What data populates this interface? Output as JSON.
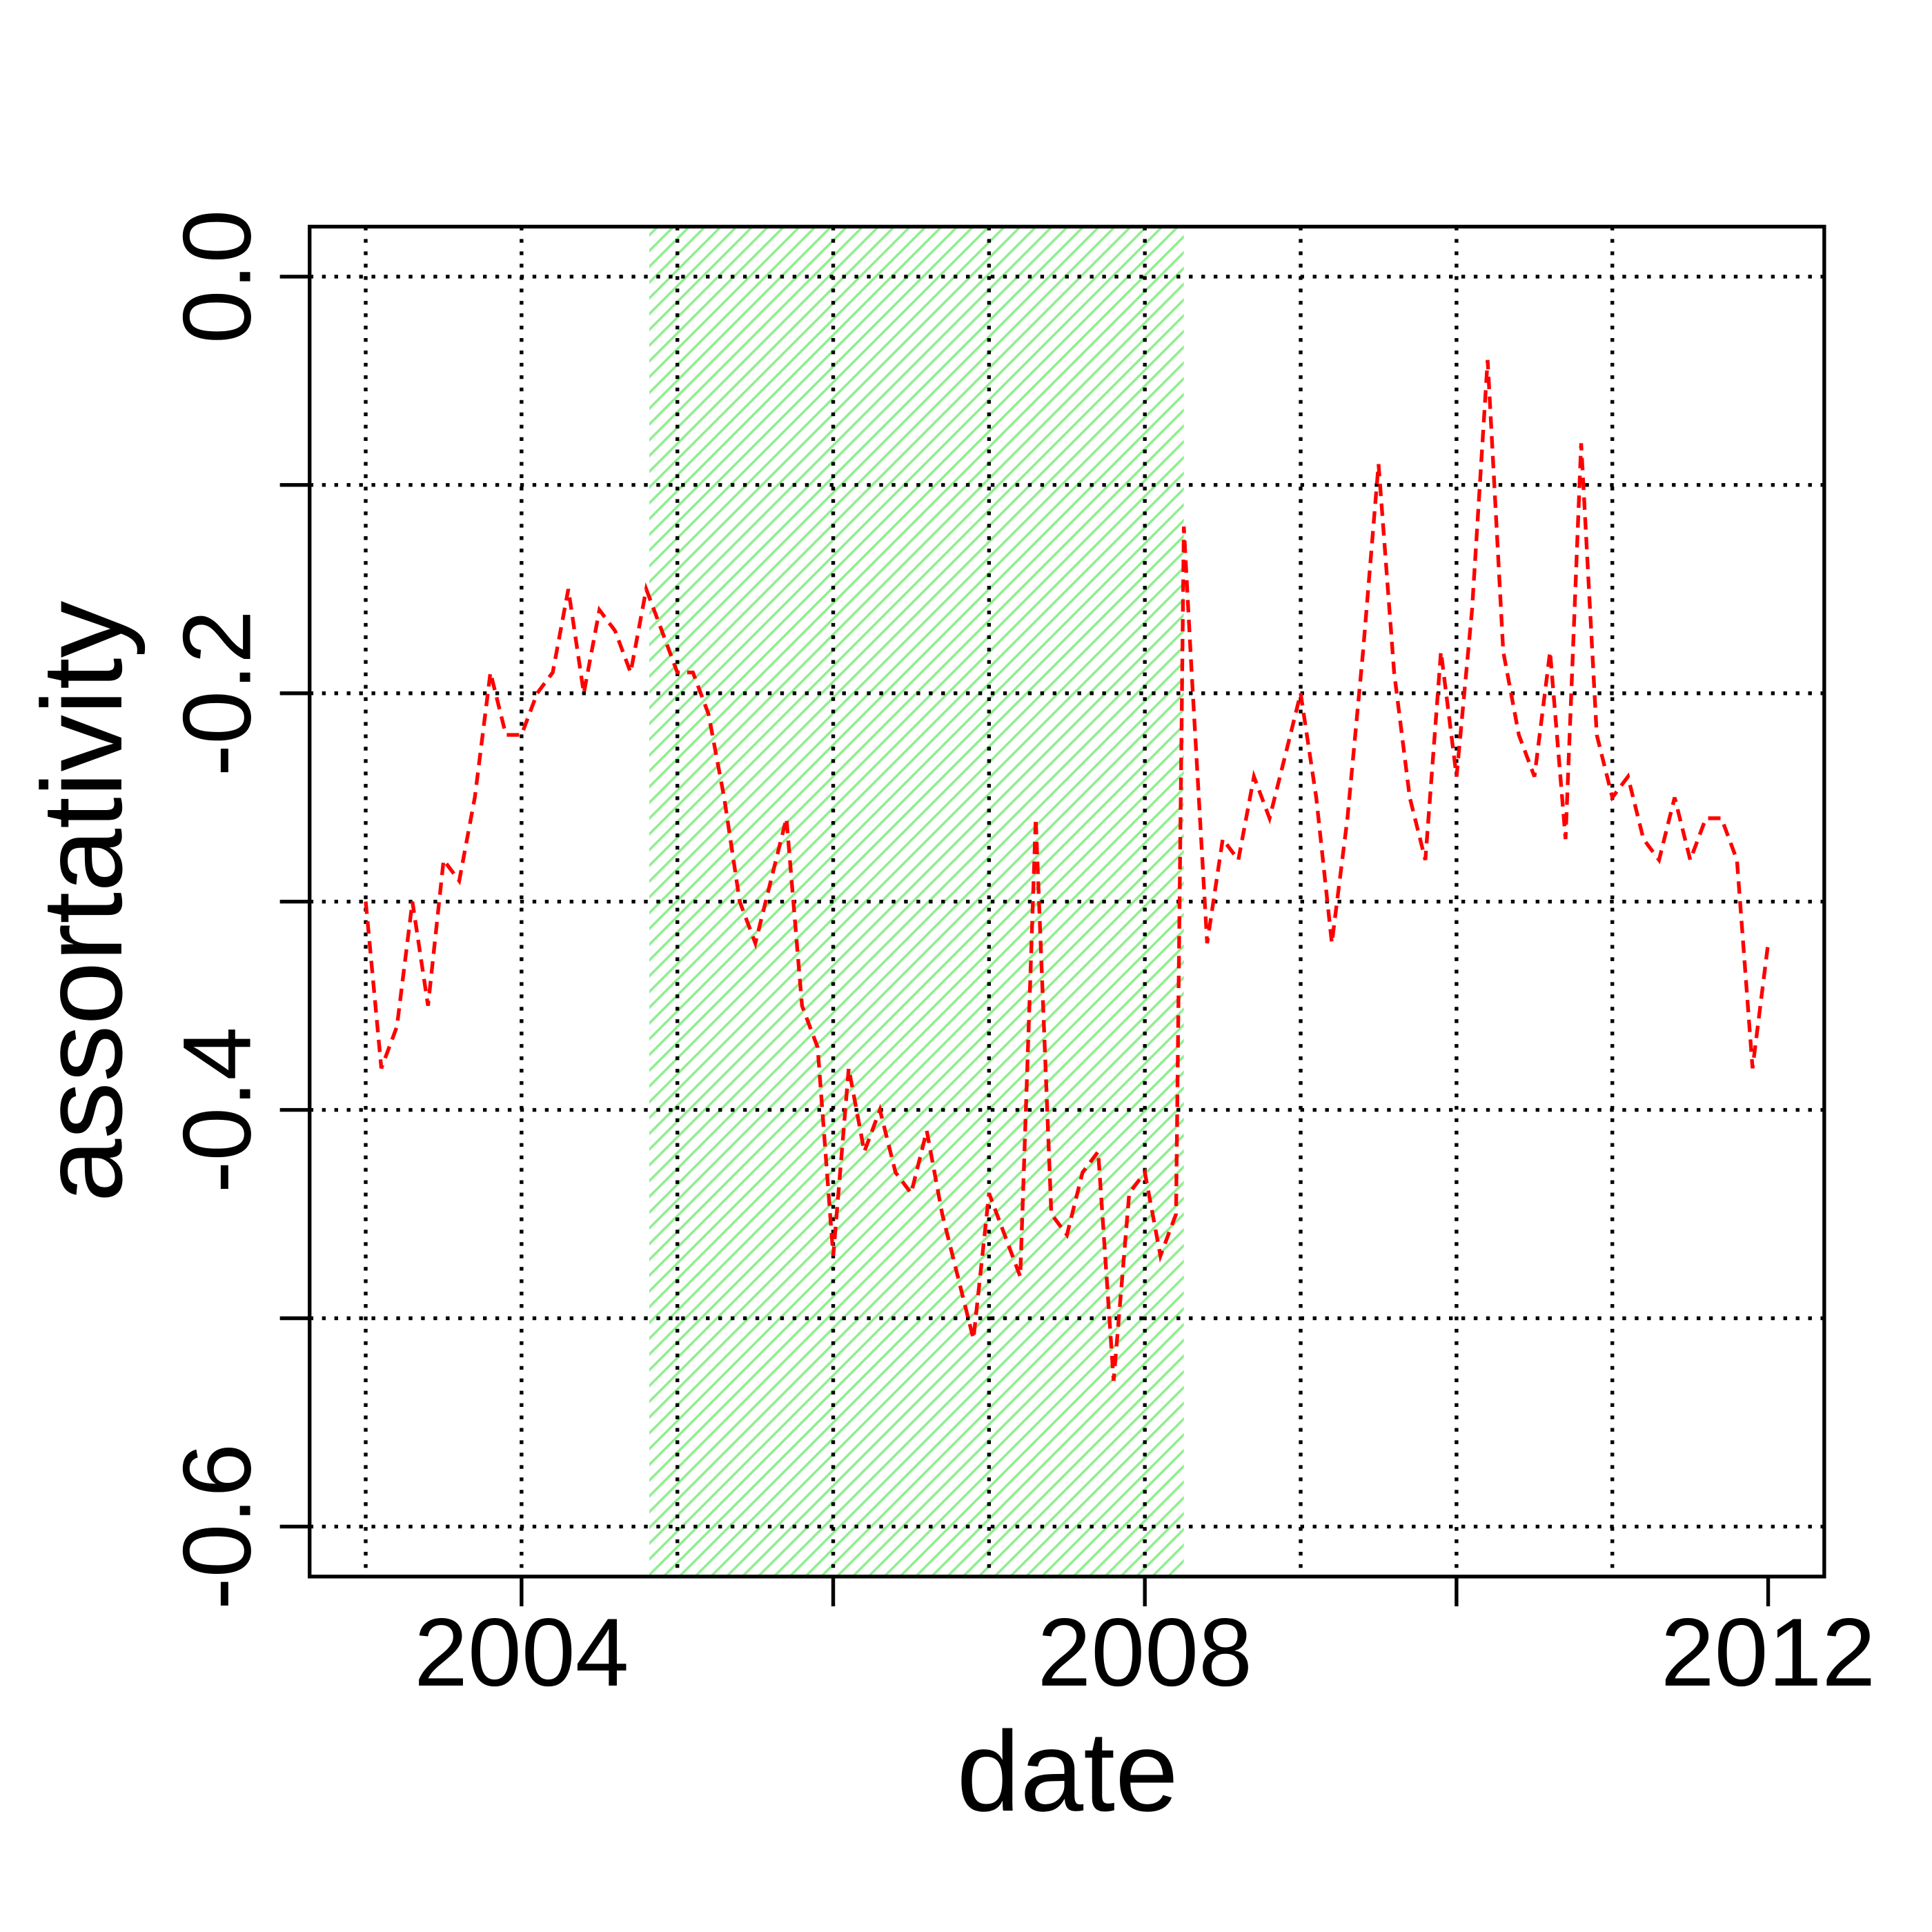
{
  "chart_data": {
    "type": "line",
    "xlabel": "date",
    "ylabel": "assortativity",
    "color": "#ff0000",
    "line_style": "dashed",
    "x": [
      2003.0,
      2003.1,
      2003.2,
      2003.3,
      2003.4,
      2003.5,
      2003.6,
      2003.7,
      2003.8,
      2003.9,
      2004.0,
      2004.1,
      2004.2,
      2004.3,
      2004.4,
      2004.5,
      2004.6,
      2004.7,
      2004.8,
      2004.9,
      2005.0,
      2005.1,
      2005.2,
      2005.3,
      2005.4,
      2005.5,
      2005.6,
      2005.7,
      2005.8,
      2005.9,
      2006.0,
      2006.1,
      2006.2,
      2006.3,
      2006.4,
      2006.5,
      2006.6,
      2006.7,
      2006.8,
      2006.9,
      2007.0,
      2007.1,
      2007.2,
      2007.3,
      2007.4,
      2007.5,
      2007.6,
      2007.7,
      2007.8,
      2007.9,
      2008.0,
      2008.1,
      2008.2,
      2008.25,
      2008.3,
      2008.4,
      2008.5,
      2008.6,
      2008.7,
      2008.8,
      2008.9,
      2009.0,
      2009.1,
      2009.2,
      2009.3,
      2009.4,
      2009.5,
      2009.6,
      2009.7,
      2009.8,
      2009.9,
      2010.0,
      2010.1,
      2010.2,
      2010.3,
      2010.4,
      2010.5,
      2010.6,
      2010.7,
      2010.8,
      2010.9,
      2011.0,
      2011.1,
      2011.2,
      2011.3,
      2011.4,
      2011.5,
      2011.6,
      2011.7,
      2011.8,
      2011.9,
      2012.0
    ],
    "values": [
      -0.3,
      -0.38,
      -0.36,
      -0.3,
      -0.35,
      -0.28,
      -0.29,
      -0.25,
      -0.19,
      -0.22,
      -0.22,
      -0.2,
      -0.19,
      -0.15,
      -0.2,
      -0.16,
      -0.17,
      -0.19,
      -0.15,
      -0.17,
      -0.19,
      -0.19,
      -0.21,
      -0.25,
      -0.3,
      -0.32,
      -0.29,
      -0.26,
      -0.35,
      -0.37,
      -0.47,
      -0.38,
      -0.42,
      -0.4,
      -0.43,
      -0.44,
      -0.41,
      -0.45,
      -0.48,
      -0.51,
      -0.44,
      -0.46,
      -0.48,
      -0.26,
      -0.45,
      -0.46,
      -0.43,
      -0.42,
      -0.53,
      -0.44,
      -0.43,
      -0.47,
      -0.45,
      -0.12,
      -0.19,
      -0.32,
      -0.27,
      -0.28,
      -0.24,
      -0.26,
      -0.23,
      -0.2,
      -0.25,
      -0.32,
      -0.26,
      -0.18,
      -0.09,
      -0.19,
      -0.25,
      -0.28,
      -0.18,
      -0.24,
      -0.16,
      -0.04,
      -0.18,
      -0.22,
      -0.24,
      -0.18,
      -0.27,
      -0.08,
      -0.22,
      -0.25,
      -0.24,
      -0.27,
      -0.28,
      -0.25,
      -0.28,
      -0.26,
      -0.26,
      -0.28,
      -0.38,
      -0.32
    ],
    "xlim": [
      2002.64,
      2012.36
    ],
    "ylim": [
      -0.624,
      0.024
    ],
    "xticks": [
      2004,
      {
        "value": 2006,
        "label": null
      },
      2008,
      {
        "value": 2010,
        "label": null
      },
      2012
    ],
    "yticks": [
      {
        "value": 0,
        "label": "0.0"
      },
      {
        "value": -0.1,
        "label": null
      },
      -0.2,
      {
        "value": -0.3,
        "label": null
      },
      -0.4,
      {
        "value": -0.5,
        "label": null
      },
      -0.6
    ],
    "xgrid": [
      2003,
      2004,
      2005,
      2006,
      2007,
      2008,
      2009,
      2010,
      2011
    ],
    "grid": true,
    "shaded_region": {
      "x": [
        2004.82,
        2008.25
      ],
      "color": "#90ee90",
      "pattern": "hatch"
    }
  }
}
